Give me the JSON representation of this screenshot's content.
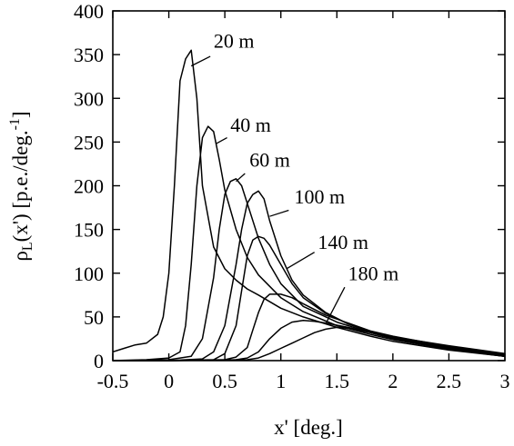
{
  "chart_data": {
    "type": "line",
    "xlabel": "x' [deg.]",
    "ylabel": "ρL(x') [p.e./deg.-1]",
    "ylabel_parts": {
      "rho": "ρ",
      "sub": "L",
      "mid": "(x') [p.e./deg.",
      "sup": "-1",
      "end": "]"
    },
    "xlim": [
      -0.5,
      3
    ],
    "ylim": [
      0,
      400
    ],
    "x_ticks": [
      -0.5,
      0,
      0.5,
      1,
      1.5,
      2,
      2.5,
      3
    ],
    "x_tick_labels": [
      "-0.5",
      "0",
      "0.5",
      "1",
      "1.5",
      "2",
      "2.5",
      "3"
    ],
    "y_ticks": [
      0,
      50,
      100,
      150,
      200,
      250,
      300,
      350,
      400
    ],
    "y_tick_labels": [
      "0",
      "50",
      "100",
      "150",
      "200",
      "250",
      "300",
      "350",
      "400"
    ],
    "grid": false,
    "legend": "inline labels",
    "series": [
      {
        "name": "20 m",
        "label_at": [
          0.4,
          358
        ],
        "leader_from": [
          0.37,
          348
        ],
        "leader_to": [
          0.2,
          337
        ],
        "points": [
          [
            -0.5,
            10
          ],
          [
            -0.4,
            14
          ],
          [
            -0.3,
            18
          ],
          [
            -0.2,
            20
          ],
          [
            -0.1,
            30
          ],
          [
            -0.05,
            50
          ],
          [
            0,
            100
          ],
          [
            0.05,
            200
          ],
          [
            0.1,
            320
          ],
          [
            0.15,
            345
          ],
          [
            0.2,
            355
          ],
          [
            0.25,
            300
          ],
          [
            0.3,
            200
          ],
          [
            0.4,
            130
          ],
          [
            0.5,
            105
          ],
          [
            0.6,
            92
          ],
          [
            0.7,
            82
          ],
          [
            0.8,
            75
          ],
          [
            1.0,
            60
          ],
          [
            1.2,
            50
          ],
          [
            1.5,
            38
          ],
          [
            1.8,
            28
          ],
          [
            2.0,
            22
          ],
          [
            2.5,
            12
          ],
          [
            3.0,
            5
          ]
        ]
      },
      {
        "name": "40 m",
        "label_at": [
          0.55,
          262
        ],
        "leader_from": [
          0.52,
          255
        ],
        "leader_to": [
          0.42,
          248
        ],
        "points": [
          [
            -0.5,
            0
          ],
          [
            -0.2,
            1
          ],
          [
            0,
            3
          ],
          [
            0.1,
            10
          ],
          [
            0.15,
            40
          ],
          [
            0.2,
            110
          ],
          [
            0.25,
            200
          ],
          [
            0.3,
            255
          ],
          [
            0.35,
            268
          ],
          [
            0.4,
            262
          ],
          [
            0.45,
            230
          ],
          [
            0.5,
            195
          ],
          [
            0.6,
            150
          ],
          [
            0.7,
            118
          ],
          [
            0.8,
            98
          ],
          [
            0.9,
            85
          ],
          [
            1.0,
            72
          ],
          [
            1.2,
            56
          ],
          [
            1.5,
            40
          ],
          [
            1.8,
            30
          ],
          [
            2.0,
            24
          ],
          [
            2.5,
            13
          ],
          [
            3.0,
            5
          ]
        ]
      },
      {
        "name": "60 m",
        "label_at": [
          0.72,
          222
        ],
        "leader_from": [
          0.68,
          214
        ],
        "leader_to": [
          0.6,
          205
        ],
        "points": [
          [
            -0.5,
            0
          ],
          [
            0,
            1
          ],
          [
            0.2,
            5
          ],
          [
            0.3,
            25
          ],
          [
            0.4,
            95
          ],
          [
            0.45,
            150
          ],
          [
            0.5,
            190
          ],
          [
            0.55,
            205
          ],
          [
            0.6,
            208
          ],
          [
            0.65,
            200
          ],
          [
            0.7,
            180
          ],
          [
            0.8,
            140
          ],
          [
            0.9,
            110
          ],
          [
            1.0,
            88
          ],
          [
            1.2,
            62
          ],
          [
            1.5,
            44
          ],
          [
            1.8,
            32
          ],
          [
            2.0,
            25
          ],
          [
            2.5,
            13
          ],
          [
            3.0,
            5
          ]
        ]
      },
      {
        "name": "100 m",
        "label_at": [
          1.12,
          180
        ],
        "leader_from": [
          1.07,
          172
        ],
        "leader_to": [
          0.9,
          165
        ],
        "points": [
          [
            -0.5,
            0
          ],
          [
            0,
            0
          ],
          [
            0.3,
            2
          ],
          [
            0.4,
            10
          ],
          [
            0.5,
            40
          ],
          [
            0.6,
            110
          ],
          [
            0.65,
            150
          ],
          [
            0.7,
            180
          ],
          [
            0.75,
            190
          ],
          [
            0.8,
            194
          ],
          [
            0.85,
            185
          ],
          [
            0.9,
            160
          ],
          [
            1.0,
            120
          ],
          [
            1.1,
            92
          ],
          [
            1.2,
            75
          ],
          [
            1.4,
            55
          ],
          [
            1.6,
            42
          ],
          [
            1.8,
            33
          ],
          [
            2.0,
            26
          ],
          [
            2.5,
            14
          ],
          [
            3.0,
            5
          ]
        ]
      },
      {
        "name": "140 m",
        "label_at": [
          1.33,
          128
        ],
        "leader_from": [
          1.3,
          124
        ],
        "leader_to": [
          1.05,
          105
        ],
        "points": [
          [
            -0.5,
            0
          ],
          [
            0,
            0
          ],
          [
            0.4,
            1
          ],
          [
            0.5,
            8
          ],
          [
            0.6,
            40
          ],
          [
            0.65,
            80
          ],
          [
            0.7,
            120
          ],
          [
            0.75,
            138
          ],
          [
            0.8,
            142
          ],
          [
            0.85,
            140
          ],
          [
            0.9,
            132
          ],
          [
            1.0,
            110
          ],
          [
            1.1,
            88
          ],
          [
            1.2,
            72
          ],
          [
            1.4,
            54
          ],
          [
            1.6,
            42
          ],
          [
            1.8,
            33
          ],
          [
            2.0,
            27
          ],
          [
            2.5,
            15
          ],
          [
            3.0,
            6
          ]
        ]
      },
      {
        "name": "180 m",
        "label_at": [
          1.6,
          92
        ],
        "leader_from": [
          1.57,
          84
        ],
        "leader_to": [
          1.4,
          42
        ],
        "points": [
          [
            -0.5,
            0
          ],
          [
            0,
            0
          ],
          [
            0.5,
            1
          ],
          [
            0.6,
            4
          ],
          [
            0.7,
            15
          ],
          [
            0.75,
            35
          ],
          [
            0.8,
            55
          ],
          [
            0.85,
            70
          ],
          [
            0.9,
            76
          ],
          [
            1.0,
            76
          ],
          [
            1.1,
            72
          ],
          [
            1.2,
            65
          ],
          [
            1.4,
            52
          ],
          [
            1.6,
            43
          ],
          [
            1.8,
            34
          ],
          [
            2.0,
            28
          ],
          [
            2.5,
            16
          ],
          [
            3.0,
            6
          ]
        ]
      },
      {
        "name": "",
        "points": [
          [
            -0.5,
            0
          ],
          [
            0,
            0
          ],
          [
            0.6,
            1
          ],
          [
            0.7,
            3
          ],
          [
            0.8,
            10
          ],
          [
            0.9,
            25
          ],
          [
            1.0,
            37
          ],
          [
            1.1,
            44
          ],
          [
            1.2,
            46
          ],
          [
            1.3,
            45
          ],
          [
            1.4,
            43
          ],
          [
            1.6,
            38
          ],
          [
            1.8,
            32
          ],
          [
            2.0,
            26
          ],
          [
            2.5,
            16
          ],
          [
            3.0,
            7
          ]
        ]
      },
      {
        "name": "",
        "points": [
          [
            -0.5,
            0
          ],
          [
            0,
            0
          ],
          [
            0.7,
            1
          ],
          [
            0.8,
            3
          ],
          [
            0.9,
            8
          ],
          [
            1.0,
            14
          ],
          [
            1.1,
            20
          ],
          [
            1.2,
            26
          ],
          [
            1.3,
            32
          ],
          [
            1.4,
            36
          ],
          [
            1.5,
            38
          ],
          [
            1.6,
            37
          ],
          [
            1.8,
            32
          ],
          [
            2.0,
            27
          ],
          [
            2.5,
            17
          ],
          [
            3.0,
            8
          ]
        ]
      }
    ]
  }
}
